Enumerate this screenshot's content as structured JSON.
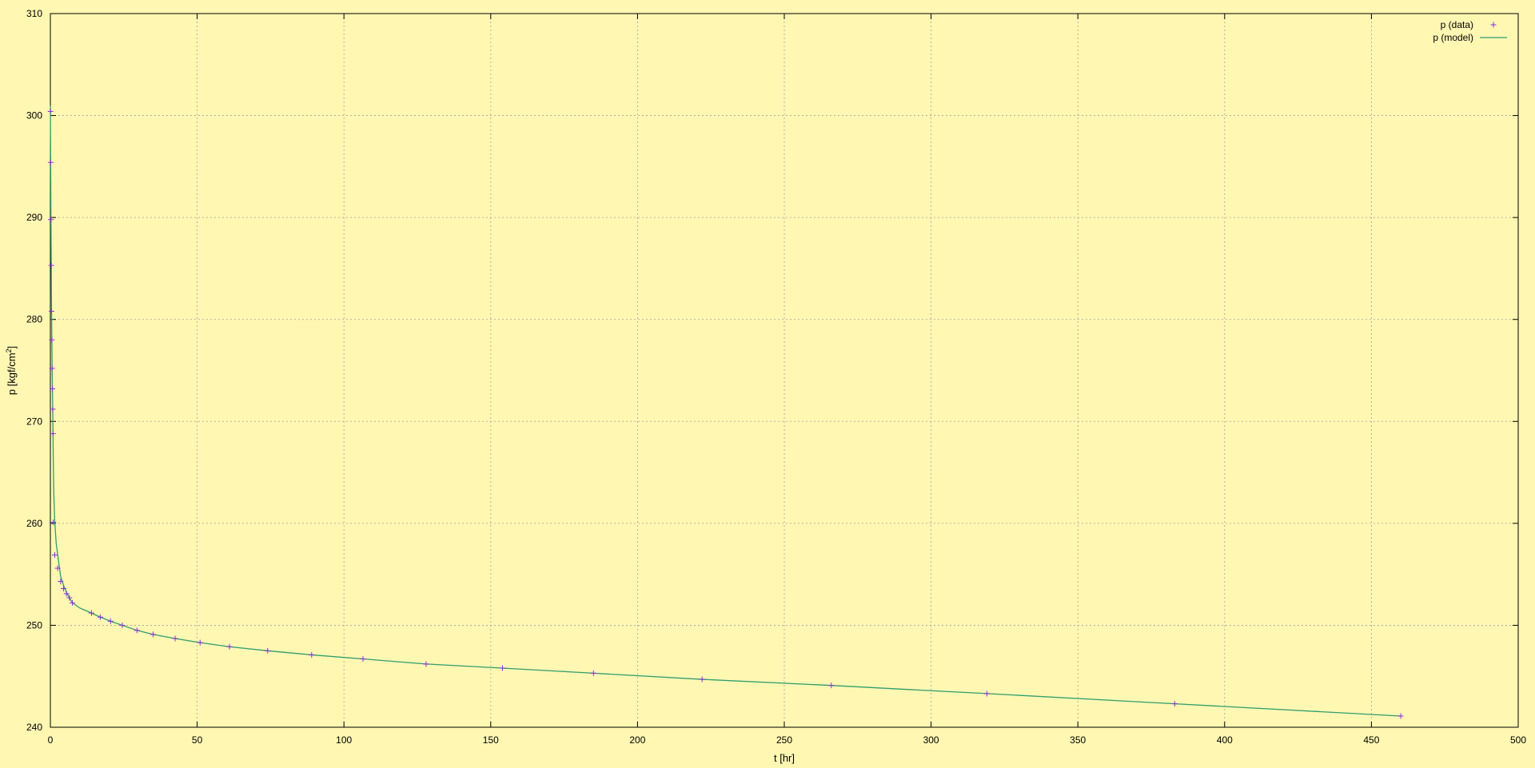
{
  "chart_data": {
    "type": "scatter",
    "title": "",
    "xlabel": "t [hr]",
    "ylabel_main": "p [kgf/cm",
    "ylabel_sup": "2",
    "ylabel_end": "]",
    "xlim": [
      0,
      500
    ],
    "ylim": [
      240,
      310
    ],
    "xticks": [
      0,
      50,
      100,
      150,
      200,
      250,
      300,
      350,
      400,
      450,
      500
    ],
    "yticks": [
      240,
      250,
      260,
      270,
      280,
      290,
      300,
      310
    ],
    "grid": true,
    "legend_position": "top-right",
    "colors": {
      "background": "#fff7b2",
      "data": "#8a2be2",
      "model": "#2e9e6e",
      "grid": "#a0a0a0"
    },
    "series": [
      {
        "name": "p (data)",
        "style": "points",
        "x": [
          0.05,
          0.1,
          0.2,
          0.3,
          0.4,
          0.5,
          0.6,
          0.7,
          0.8,
          0.9,
          1.0,
          1.5,
          2.5,
          3.5,
          4.5,
          5.5,
          6.5,
          7.5,
          14,
          17,
          20.5,
          24.5,
          29.5,
          35,
          42.5,
          51,
          61,
          74,
          89,
          106.5,
          128,
          154,
          185,
          222,
          266,
          319,
          383,
          460
        ],
        "y": [
          300.4,
          295.4,
          289.8,
          285.3,
          280.8,
          278.0,
          275.2,
          273.2,
          271.2,
          268.8,
          260.1,
          256.9,
          255.6,
          254.3,
          253.6,
          253.1,
          252.7,
          252.2,
          251.2,
          250.8,
          250.4,
          250.0,
          249.5,
          249.1,
          248.7,
          248.3,
          247.9,
          247.5,
          247.1,
          246.7,
          246.2,
          245.8,
          245.3,
          244.7,
          244.1,
          243.3,
          242.3,
          241.1
        ]
      },
      {
        "name": "p (model)",
        "style": "line",
        "x": [
          0.0,
          0.1,
          0.2,
          0.3,
          0.4,
          0.5,
          0.6,
          0.7,
          0.8,
          0.9,
          1.0,
          1.2,
          1.5,
          2.0,
          2.5,
          3.5,
          4.5,
          5.5,
          7.5,
          10,
          14,
          17,
          20.5,
          24.5,
          29.5,
          35,
          42.5,
          51,
          61,
          74,
          89,
          106.5,
          128,
          154,
          185,
          222,
          266,
          319,
          383,
          460
        ],
        "y": [
          301.0,
          295.4,
          289.8,
          285.3,
          280.8,
          278.0,
          275.2,
          273.2,
          271.2,
          268.8,
          266.0,
          262.6,
          260.1,
          258.0,
          256.9,
          254.8,
          253.9,
          253.2,
          252.2,
          251.7,
          251.2,
          250.8,
          250.4,
          250.0,
          249.5,
          249.1,
          248.7,
          248.3,
          247.9,
          247.5,
          247.1,
          246.7,
          246.2,
          245.8,
          245.3,
          244.7,
          244.1,
          243.3,
          242.3,
          241.1
        ]
      }
    ]
  }
}
